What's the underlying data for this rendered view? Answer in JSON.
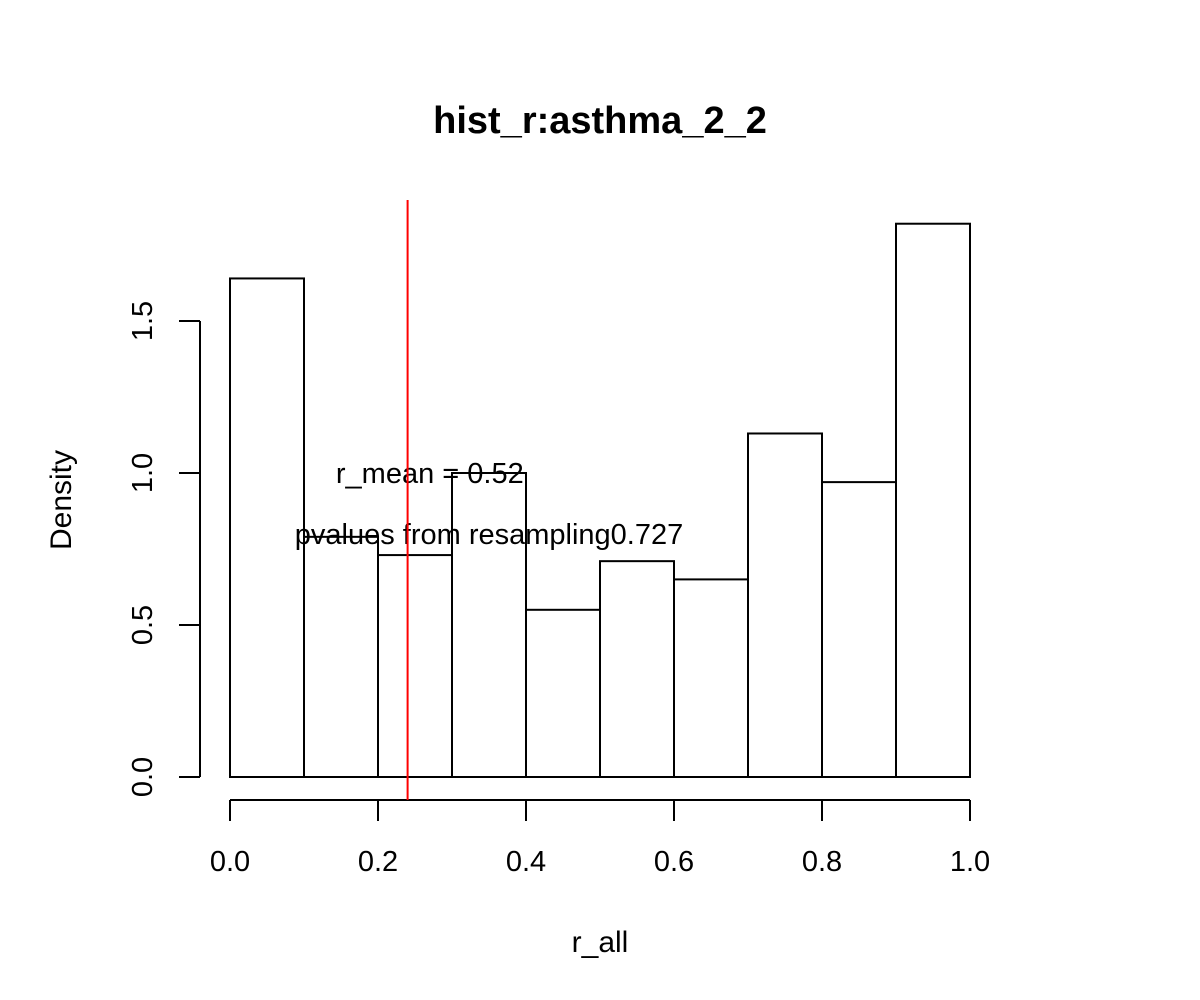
{
  "chart_data": {
    "type": "bar",
    "title": "hist_r:asthma_2_2",
    "xlabel": "r_all",
    "ylabel": "Density",
    "xlim": [
      0,
      1
    ],
    "ylim": [
      0,
      1.82
    ],
    "bins": [
      {
        "x0": 0.0,
        "x1": 0.1,
        "density": 1.64
      },
      {
        "x0": 0.1,
        "x1": 0.2,
        "density": 0.79
      },
      {
        "x0": 0.2,
        "x1": 0.3,
        "density": 0.73
      },
      {
        "x0": 0.3,
        "x1": 0.4,
        "density": 1.0
      },
      {
        "x0": 0.4,
        "x1": 0.5,
        "density": 0.55
      },
      {
        "x0": 0.5,
        "x1": 0.6,
        "density": 0.71
      },
      {
        "x0": 0.6,
        "x1": 0.7,
        "density": 0.65
      },
      {
        "x0": 0.7,
        "x1": 0.8,
        "density": 1.13
      },
      {
        "x0": 0.8,
        "x1": 0.9,
        "density": 0.97
      },
      {
        "x0": 0.9,
        "x1": 1.0,
        "density": 1.82
      }
    ],
    "x_ticks": [
      {
        "value": 0.0,
        "label": "0.0"
      },
      {
        "value": 0.2,
        "label": "0.2"
      },
      {
        "value": 0.4,
        "label": "0.4"
      },
      {
        "value": 0.6,
        "label": "0.6"
      },
      {
        "value": 0.8,
        "label": "0.8"
      },
      {
        "value": 1.0,
        "label": "1.0"
      }
    ],
    "y_ticks": [
      {
        "value": 0.0,
        "label": "0.0"
      },
      {
        "value": 0.5,
        "label": "0.5"
      },
      {
        "value": 1.0,
        "label": "1.0"
      },
      {
        "value": 1.5,
        "label": "1.5"
      }
    ],
    "reference_line": {
      "x": 0.24,
      "color": "#ff0000"
    },
    "annotations": [
      {
        "text": "r_mean = 0.52",
        "x": 0.27,
        "y": 1.0
      },
      {
        "text": "pvalues from resampling0.727",
        "x": 0.35,
        "y": 0.8
      }
    ],
    "grid": false,
    "legend": "none"
  }
}
